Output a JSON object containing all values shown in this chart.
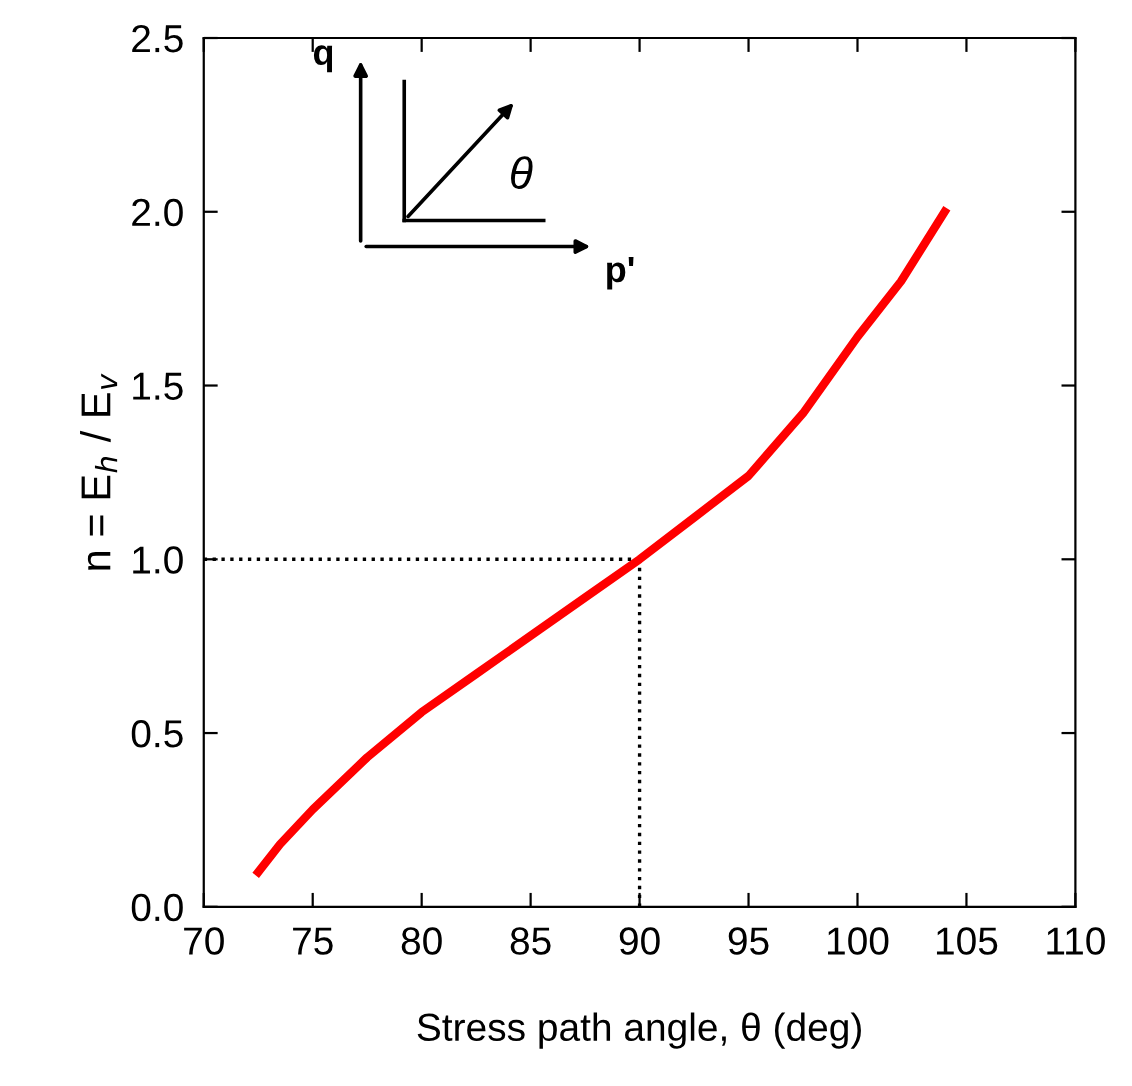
{
  "chart_data": {
    "type": "line",
    "xlabel": "Stress path angle, θ (deg)",
    "ylabel": "n = E$_{h}$ / E$_{v}$",
    "series": [
      {
        "color": "#ff0000",
        "x": [
          72.5,
          73.5,
          75,
          77.5,
          80,
          82.5,
          85,
          87.5,
          90,
          92.5,
          95,
          97.5,
          100,
          102,
          104
        ],
        "values": [
          0.1,
          0.18,
          0.28,
          0.43,
          0.56,
          0.67,
          0.78,
          0.89,
          1.0,
          1.12,
          1.24,
          1.42,
          1.64,
          1.8,
          2.0
        ]
      }
    ],
    "xlim": [
      70,
      110
    ],
    "xticks": [
      70,
      75,
      80,
      85,
      90,
      95,
      100,
      105,
      110
    ],
    "ylim": [
      0,
      2.5
    ],
    "yticks": [
      {
        "value": 0,
        "label": "0.0"
      },
      0.5,
      {
        "value": 1,
        "label": "1.0"
      },
      1.5,
      {
        "value": 2,
        "label": "2.0"
      },
      2.5
    ],
    "ref_lines": [
      {
        "axis": "x",
        "value": 90,
        "color": "#000000",
        "line_style": "dotted"
      },
      {
        "axis": "y",
        "value": 1.0,
        "color": "#000000",
        "line_style": "dotted"
      }
    ],
    "annotations": [
      "q",
      "p'",
      "θ"
    ],
    "grid": false,
    "legend": false,
    "marker": "none",
    "line_style": "solid"
  }
}
